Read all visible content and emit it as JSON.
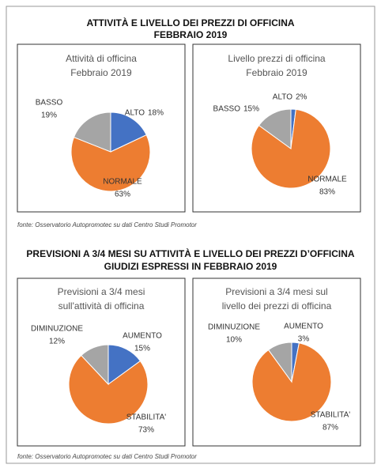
{
  "sections": [
    {
      "title": [
        "ATTIVITÀ E LIVELLO DEI PREZZI DI OFFICINA",
        "FEBBRAIO 2019"
      ],
      "source": "fonte: Osservatorio Autopromotec su dati Centro Studi Promotor"
    },
    {
      "title": [
        "PREVISIONI A 3/4 MESI SU ATTIVITÀ E LIVELLO DEI PREZZI D’OFFICINA",
        "GIUDIZI ESPRESSI IN FEBBRAIO 2019"
      ],
      "source": "fonte: Osservatorio Autopromotec su dati Centro Studi Promotor"
    }
  ],
  "chart_data": [
    {
      "type": "pie",
      "title": [
        "Attività di officina",
        "Febbraio 2019"
      ],
      "categories": [
        "ALTO",
        "NORMALE",
        "BASSO"
      ],
      "values": [
        18,
        63,
        19
      ],
      "value_labels": [
        "18%",
        "63%",
        "19%"
      ],
      "colors": [
        "#4472c4",
        "#ed7d31",
        "#a5a5a5"
      ]
    },
    {
      "type": "pie",
      "title": [
        "Livello prezzi di officina",
        "Febbraio 2019"
      ],
      "categories": [
        "ALTO",
        "NORMALE",
        "BASSO"
      ],
      "values": [
        2,
        83,
        15
      ],
      "value_labels": [
        "2%",
        "83%",
        "15%"
      ],
      "colors": [
        "#4472c4",
        "#ed7d31",
        "#a5a5a5"
      ]
    },
    {
      "type": "pie",
      "title": [
        "Previsioni a 3/4 mesi",
        "sull'attività di officina"
      ],
      "categories": [
        "AUMENTO",
        "STABILITA'",
        "DIMINUZIONE"
      ],
      "values": [
        15,
        73,
        12
      ],
      "value_labels": [
        "15%",
        "73%",
        "12%"
      ],
      "colors": [
        "#4472c4",
        "#ed7d31",
        "#a5a5a5"
      ]
    },
    {
      "type": "pie",
      "title": [
        "Previsioni a 3/4 mesi sul",
        "livello dei prezzi di officina"
      ],
      "categories": [
        "AUMENTO",
        "STABILITA'",
        "DIMINUZIONE"
      ],
      "values": [
        3,
        87,
        10
      ],
      "value_labels": [
        "3%",
        "87%",
        "10%"
      ],
      "colors": [
        "#4472c4",
        "#ed7d31",
        "#a5a5a5"
      ]
    }
  ]
}
